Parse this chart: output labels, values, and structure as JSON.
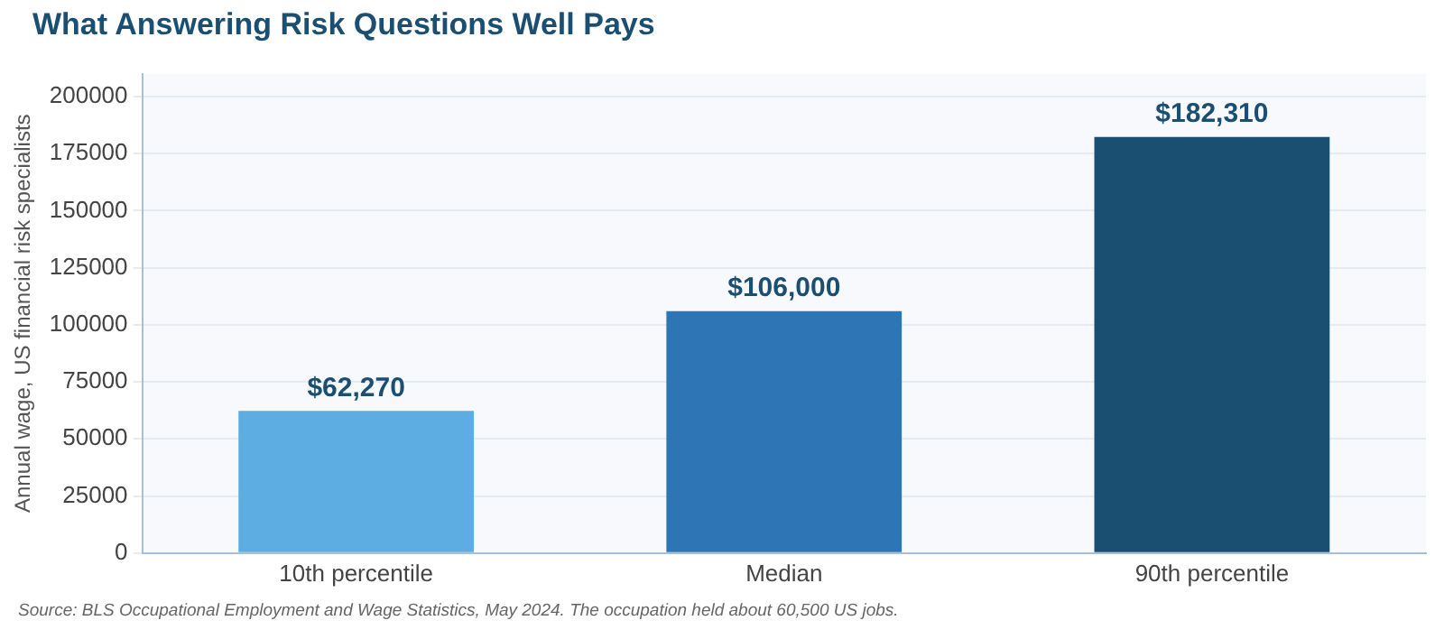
{
  "chart_data": {
    "type": "bar",
    "title": "What Answering Risk Questions Well Pays",
    "ylabel": "Annual wage, US financial risk specialists",
    "categories": [
      "10th percentile",
      "Median",
      "90th percentile"
    ],
    "values": [
      62270,
      106000,
      182310
    ],
    "colors": [
      "#5dade2",
      "#2e75b6",
      "#1b4f72"
    ],
    "value_labels": [
      "$62,270",
      "$106,000",
      "$182,310"
    ],
    "ylim": [
      0,
      210000
    ],
    "yticks": [
      0,
      25000,
      50000,
      75000,
      100000,
      125000,
      150000,
      175000,
      200000
    ],
    "grid": "y",
    "annotations": [
      "Source: BLS Occupational Employment and Wage Statistics, May 2024. The occupation held about 60,500 US jobs."
    ]
  }
}
